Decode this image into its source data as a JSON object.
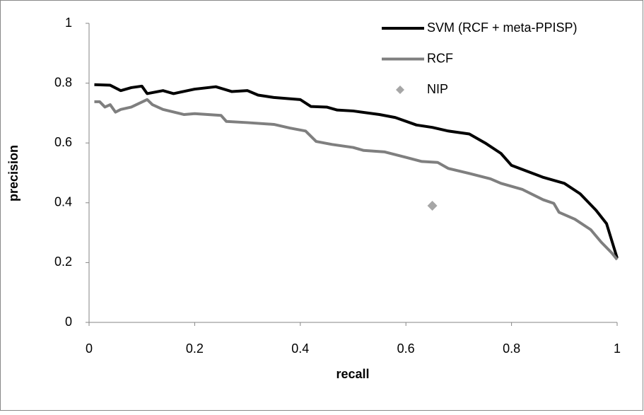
{
  "chart_data": {
    "type": "line",
    "xlabel": "recall",
    "ylabel": "precision",
    "xlim": [
      0,
      1
    ],
    "ylim": [
      0,
      1
    ],
    "xticks": [
      0,
      0.2,
      0.4,
      0.6,
      0.8,
      1
    ],
    "yticks": [
      0,
      0.2,
      0.4,
      0.6,
      0.8,
      1
    ],
    "grid": false,
    "legend": "upper right",
    "series": [
      {
        "name": "SVM (RCF + meta-PPISP)",
        "color": "#000000",
        "type": "line",
        "x": [
          0.01,
          0.04,
          0.06,
          0.08,
          0.1,
          0.11,
          0.14,
          0.16,
          0.2,
          0.24,
          0.27,
          0.3,
          0.32,
          0.35,
          0.4,
          0.42,
          0.45,
          0.47,
          0.5,
          0.55,
          0.58,
          0.62,
          0.65,
          0.68,
          0.72,
          0.75,
          0.78,
          0.8,
          0.83,
          0.86,
          0.9,
          0.93,
          0.96,
          0.98,
          1.0
        ],
        "values": [
          0.795,
          0.793,
          0.775,
          0.785,
          0.79,
          0.765,
          0.775,
          0.765,
          0.78,
          0.788,
          0.772,
          0.775,
          0.76,
          0.752,
          0.745,
          0.722,
          0.72,
          0.71,
          0.707,
          0.695,
          0.685,
          0.66,
          0.652,
          0.64,
          0.63,
          0.6,
          0.565,
          0.525,
          0.505,
          0.485,
          0.465,
          0.43,
          0.375,
          0.33,
          0.215
        ]
      },
      {
        "name": "RCF",
        "color": "#7f7f7f",
        "type": "line",
        "x": [
          0.01,
          0.02,
          0.03,
          0.04,
          0.05,
          0.06,
          0.08,
          0.11,
          0.12,
          0.14,
          0.18,
          0.2,
          0.25,
          0.26,
          0.3,
          0.35,
          0.38,
          0.41,
          0.43,
          0.46,
          0.5,
          0.52,
          0.56,
          0.6,
          0.63,
          0.66,
          0.68,
          0.72,
          0.76,
          0.78,
          0.82,
          0.86,
          0.88,
          0.89,
          0.92,
          0.95,
          0.97,
          0.99,
          1.0
        ],
        "values": [
          0.738,
          0.738,
          0.72,
          0.728,
          0.703,
          0.712,
          0.72,
          0.745,
          0.728,
          0.712,
          0.695,
          0.698,
          0.692,
          0.672,
          0.668,
          0.662,
          0.65,
          0.64,
          0.605,
          0.595,
          0.585,
          0.575,
          0.57,
          0.552,
          0.538,
          0.535,
          0.515,
          0.498,
          0.48,
          0.465,
          0.445,
          0.41,
          0.398,
          0.368,
          0.345,
          0.31,
          0.268,
          0.232,
          0.21
        ]
      },
      {
        "name": "NIP",
        "color": "#a6a6a6",
        "type": "scatter",
        "x": [
          0.65
        ],
        "values": [
          0.39
        ]
      }
    ]
  }
}
